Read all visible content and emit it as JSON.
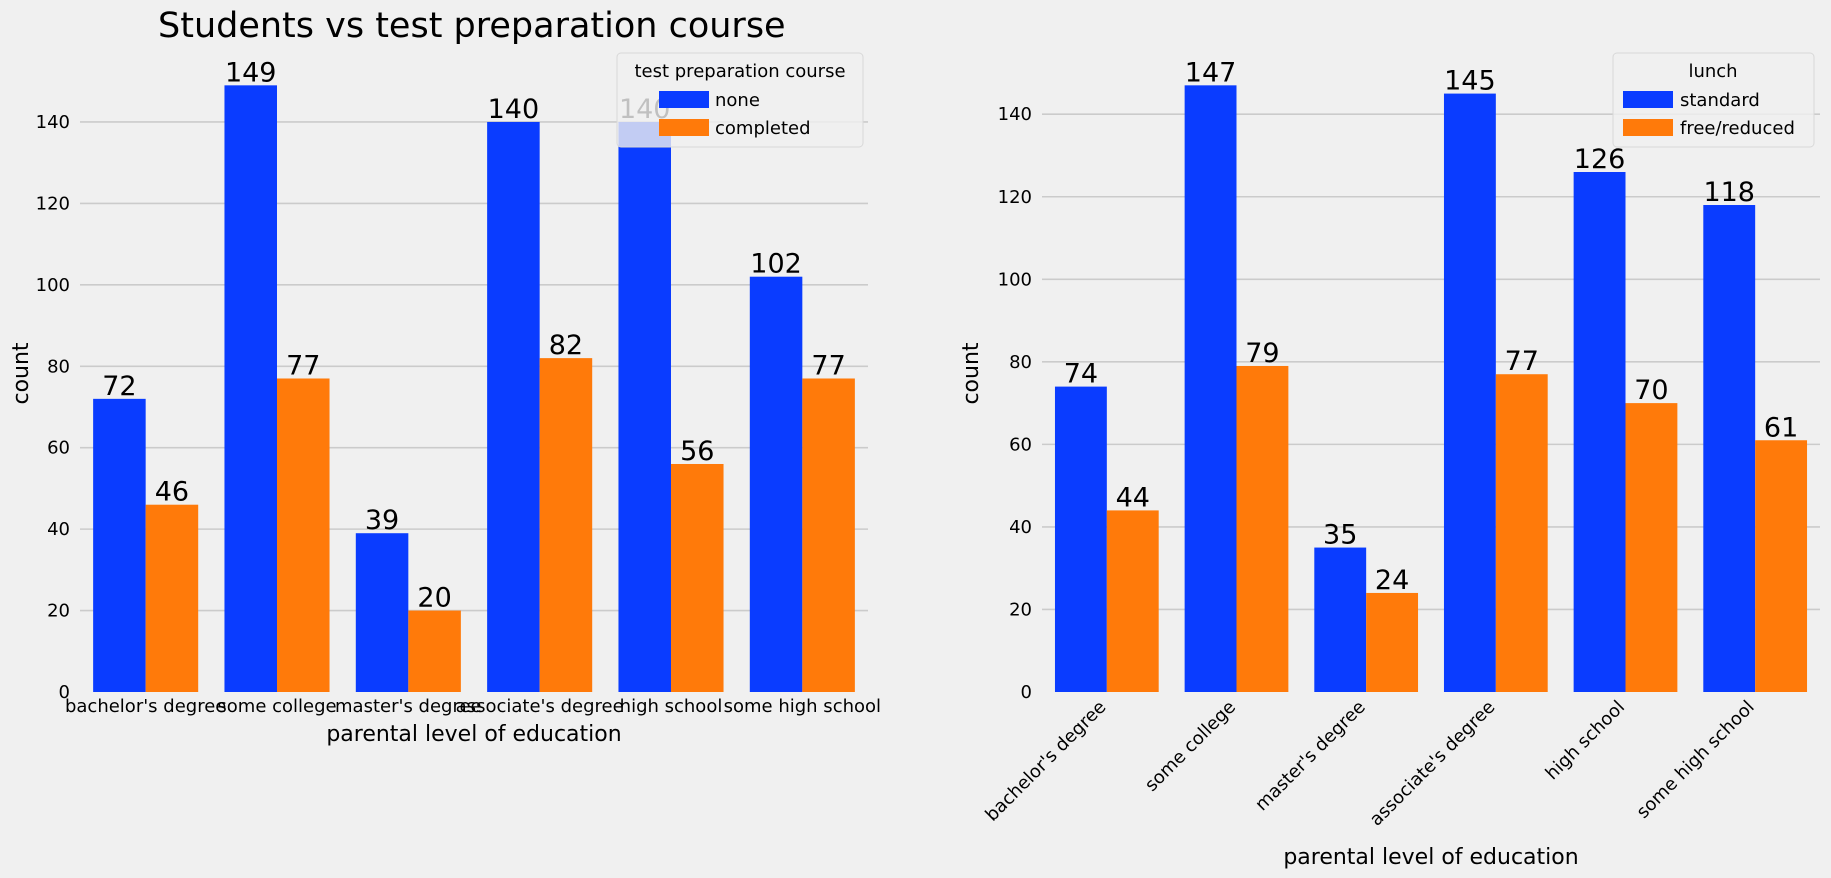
{
  "chart_data": [
    {
      "type": "bar",
      "title": "Students vs test preparation course",
      "xlabel": "parental level of education",
      "ylabel": "count",
      "categories": [
        "bachelor's degree",
        "some college",
        "master's degree",
        "associate's degree",
        "high school",
        "some high school"
      ],
      "series": [
        {
          "name": "none",
          "values": [
            72,
            149,
            39,
            140,
            140,
            102
          ],
          "color": "#0a3cff"
        },
        {
          "name": "completed",
          "values": [
            46,
            77,
            20,
            82,
            56,
            77
          ],
          "color": "#ff7a0a"
        }
      ],
      "yticks": [
        0,
        20,
        40,
        60,
        80,
        100,
        120,
        140
      ],
      "ylim": [
        0,
        156.45
      ],
      "grid": "horizontal",
      "legend": {
        "title": "test preparation course",
        "placement": "top-right"
      },
      "xtick_rotation": 0
    },
    {
      "type": "bar",
      "title": "",
      "xlabel": "parental level of education",
      "ylabel": "count",
      "categories": [
        "bachelor's degree",
        "some college",
        "master's degree",
        "associate's degree",
        "high school",
        "some high school"
      ],
      "series": [
        {
          "name": "standard",
          "values": [
            74,
            147,
            35,
            145,
            126,
            118
          ],
          "color": "#0a3cff"
        },
        {
          "name": "free/reduced",
          "values": [
            44,
            79,
            24,
            77,
            70,
            61
          ],
          "color": "#ff7a0a"
        }
      ],
      "yticks": [
        0,
        20,
        40,
        60,
        80,
        100,
        120,
        140
      ],
      "ylim": [
        0,
        154.35
      ],
      "grid": "horizontal",
      "legend": {
        "title": "lunch",
        "placement": "top-right"
      },
      "xtick_rotation": -45
    }
  ]
}
